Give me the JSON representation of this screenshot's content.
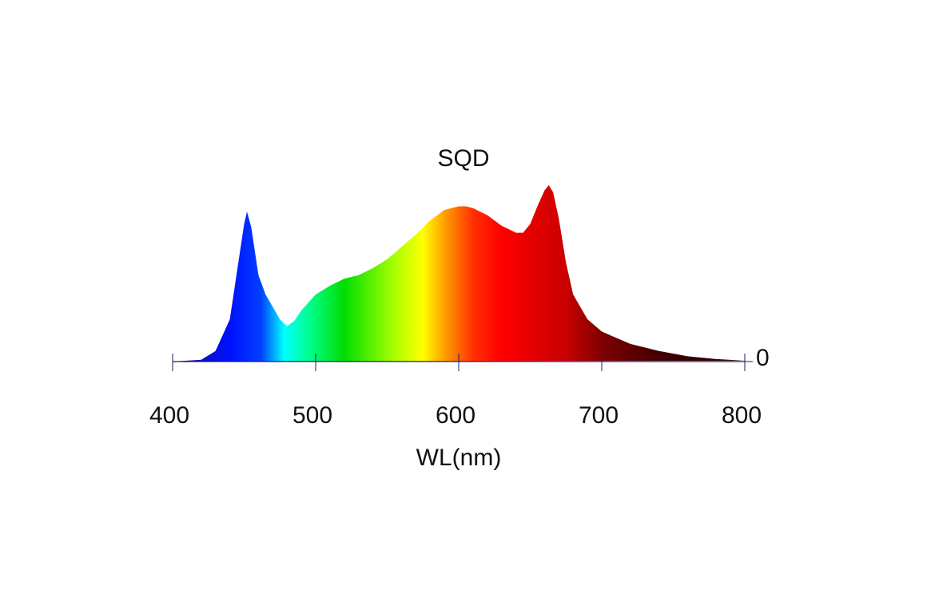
{
  "chart_data": {
    "type": "spectrum-area",
    "title": "SQD",
    "x_label": "WL(nm)",
    "x": [
      400,
      410,
      420,
      430,
      440,
      445,
      450,
      452,
      455,
      460,
      465,
      470,
      475,
      480,
      485,
      490,
      500,
      510,
      520,
      530,
      540,
      550,
      560,
      570,
      580,
      590,
      600,
      605,
      610,
      620,
      630,
      640,
      645,
      650,
      655,
      660,
      663,
      666,
      670,
      675,
      680,
      690,
      700,
      720,
      740,
      760,
      780,
      800
    ],
    "values": [
      0,
      0.005,
      0.01,
      0.06,
      0.24,
      0.51,
      0.78,
      0.85,
      0.76,
      0.49,
      0.38,
      0.31,
      0.24,
      0.2,
      0.23,
      0.29,
      0.38,
      0.43,
      0.47,
      0.49,
      0.53,
      0.58,
      0.65,
      0.72,
      0.8,
      0.86,
      0.88,
      0.88,
      0.87,
      0.83,
      0.77,
      0.73,
      0.73,
      0.78,
      0.88,
      0.97,
      1.0,
      0.96,
      0.81,
      0.56,
      0.38,
      0.24,
      0.17,
      0.1,
      0.06,
      0.03,
      0.014,
      0.005
    ],
    "xlim": [
      400,
      800
    ],
    "xticks": [
      400,
      500,
      600,
      700,
      800
    ],
    "ylim": [
      0,
      1
    ],
    "yticks": [
      0
    ],
    "y_axis_side": "right",
    "axis_color": "#1c1c6c",
    "gradient": [
      {
        "x": 400,
        "color": "#10108a"
      },
      {
        "x": 440,
        "color": "#0010ff"
      },
      {
        "x": 462,
        "color": "#0040ff"
      },
      {
        "x": 478,
        "color": "#00ffff"
      },
      {
        "x": 495,
        "color": "#00ff90"
      },
      {
        "x": 520,
        "color": "#00dd00"
      },
      {
        "x": 555,
        "color": "#a8ff00"
      },
      {
        "x": 575,
        "color": "#ffff00"
      },
      {
        "x": 590,
        "color": "#ffa000"
      },
      {
        "x": 610,
        "color": "#ff3000"
      },
      {
        "x": 630,
        "color": "#ff0000"
      },
      {
        "x": 675,
        "color": "#c80000"
      },
      {
        "x": 700,
        "color": "#800000"
      },
      {
        "x": 740,
        "color": "#400000"
      },
      {
        "x": 800,
        "color": "#200000"
      }
    ]
  }
}
